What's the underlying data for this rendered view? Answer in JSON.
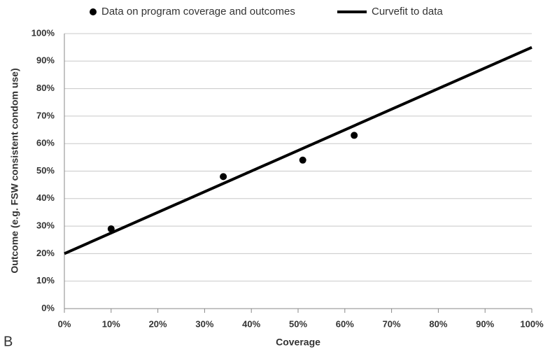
{
  "chart_data": {
    "type": "scatter",
    "panel_label": "B",
    "x_label": "Coverage",
    "y_label": "Outcome (e.g. FSW consistent condom use)",
    "xlim": [
      0,
      100
    ],
    "ylim": [
      0,
      100
    ],
    "xticks": [
      {
        "value": 0,
        "label": "0%"
      },
      {
        "value": 10,
        "label": "10%"
      },
      {
        "value": 20,
        "label": "20%"
      },
      {
        "value": 30,
        "label": "30%"
      },
      {
        "value": 40,
        "label": "40%"
      },
      {
        "value": 50,
        "label": "50%"
      },
      {
        "value": 60,
        "label": "60%"
      },
      {
        "value": 70,
        "label": "70%"
      },
      {
        "value": 80,
        "label": "80%"
      },
      {
        "value": 90,
        "label": "90%"
      },
      {
        "value": 100,
        "label": "100%"
      }
    ],
    "yticks": [
      {
        "value": 0,
        "label": "0%"
      },
      {
        "value": 10,
        "label": "10%"
      },
      {
        "value": 20,
        "label": "20%"
      },
      {
        "value": 30,
        "label": "30%"
      },
      {
        "value": 40,
        "label": "40%"
      },
      {
        "value": 50,
        "label": "50%"
      },
      {
        "value": 60,
        "label": "60%"
      },
      {
        "value": 70,
        "label": "70%"
      },
      {
        "value": 80,
        "label": "80%"
      },
      {
        "value": 90,
        "label": "90%"
      },
      {
        "value": 100,
        "label": "100%"
      }
    ],
    "grid": true,
    "legend": "top",
    "series": [
      {
        "name": "Data on program coverage and outcomes",
        "type": "scatter",
        "color": "#000000",
        "x": [
          10,
          34,
          51,
          62
        ],
        "values": [
          29,
          48,
          54,
          63
        ]
      },
      {
        "name": "Curvefit to data",
        "type": "line",
        "color": "#000000",
        "x": [
          0,
          100
        ],
        "values": [
          20,
          95
        ]
      }
    ]
  }
}
